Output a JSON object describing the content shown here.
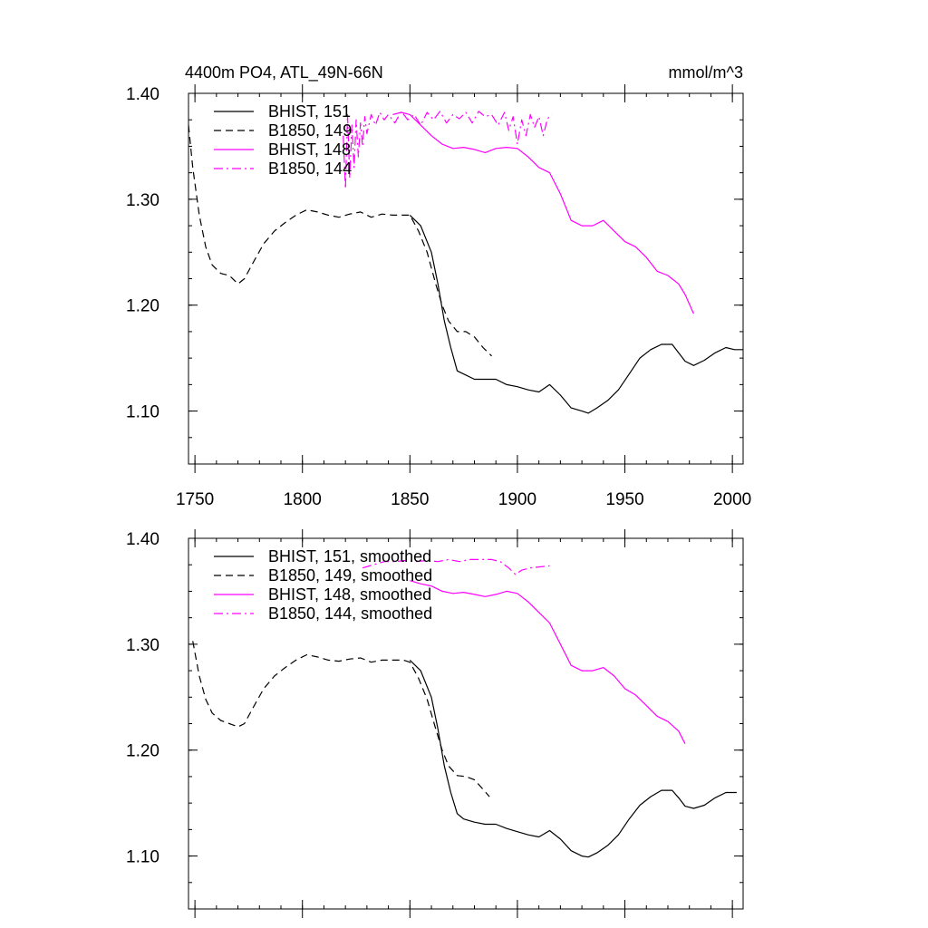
{
  "title_left": "4400m PO4, ATL_49N-66N",
  "title_right": "mmol/m^3",
  "colors": {
    "black": "#000000",
    "magenta": "#ff00ff"
  },
  "chart_data": [
    {
      "type": "line",
      "xlim": [
        1747,
        2005
      ],
      "ylim": [
        1.05,
        1.4
      ],
      "yticks": [
        1.1,
        1.2,
        1.3,
        1.4
      ],
      "ytick_labels": [
        "1.10",
        "1.20",
        "1.30",
        "1.40"
      ],
      "xticks": [
        1750,
        1800,
        1850,
        1900,
        1950,
        2000
      ],
      "xtick_labels": [
        "1750",
        "1800",
        "1850",
        "1900",
        "1950",
        "2000"
      ],
      "legend_position": "top-left",
      "series": [
        {
          "name": "BHIST, 151",
          "color": "#000000",
          "dash": "solid",
          "x": [
            1850,
            1855,
            1860,
            1863,
            1866,
            1869,
            1872,
            1875,
            1880,
            1885,
            1890,
            1895,
            1900,
            1905,
            1910,
            1915,
            1920,
            1925,
            1930,
            1933,
            1937,
            1942,
            1947,
            1952,
            1957,
            1962,
            1967,
            1972,
            1975,
            1978,
            1982,
            1987,
            1992,
            1997,
            2001,
            2005
          ],
          "y": [
            1.285,
            1.275,
            1.25,
            1.22,
            1.185,
            1.16,
            1.138,
            1.135,
            1.13,
            1.13,
            1.13,
            1.125,
            1.123,
            1.12,
            1.118,
            1.125,
            1.115,
            1.103,
            1.1,
            1.098,
            1.103,
            1.11,
            1.12,
            1.135,
            1.15,
            1.158,
            1.163,
            1.163,
            1.155,
            1.147,
            1.143,
            1.148,
            1.155,
            1.16,
            1.158,
            1.158
          ]
        },
        {
          "name": "B1850, 149",
          "color": "#000000",
          "dash": "dashed",
          "x": [
            1747,
            1749,
            1752,
            1755,
            1758,
            1762,
            1766,
            1770,
            1773,
            1777,
            1782,
            1787,
            1792,
            1797,
            1802,
            1807,
            1812,
            1817,
            1822,
            1827,
            1832,
            1837,
            1842,
            1847,
            1850,
            1854,
            1858,
            1862,
            1865,
            1868,
            1872,
            1876,
            1880,
            1884,
            1888
          ],
          "y": [
            1.37,
            1.33,
            1.285,
            1.255,
            1.238,
            1.23,
            1.228,
            1.22,
            1.225,
            1.24,
            1.258,
            1.27,
            1.278,
            1.285,
            1.29,
            1.288,
            1.285,
            1.283,
            1.286,
            1.288,
            1.283,
            1.286,
            1.285,
            1.285,
            1.285,
            1.27,
            1.25,
            1.22,
            1.2,
            1.185,
            1.175,
            1.175,
            1.17,
            1.16,
            1.152
          ]
        },
        {
          "name": "BHIST, 148",
          "color": "#ff00ff",
          "dash": "solid",
          "x": [
            1842,
            1846,
            1850,
            1855,
            1860,
            1865,
            1870,
            1875,
            1880,
            1885,
            1890,
            1895,
            1900,
            1905,
            1910,
            1915,
            1920,
            1925,
            1930,
            1935,
            1940,
            1945,
            1950,
            1955,
            1960,
            1965,
            1970,
            1975,
            1978,
            1982
          ],
          "y": [
            1.38,
            1.382,
            1.38,
            1.37,
            1.36,
            1.352,
            1.348,
            1.349,
            1.347,
            1.344,
            1.348,
            1.349,
            1.348,
            1.34,
            1.33,
            1.325,
            1.305,
            1.28,
            1.275,
            1.275,
            1.28,
            1.27,
            1.26,
            1.255,
            1.245,
            1.232,
            1.228,
            1.22,
            1.21,
            1.192
          ]
        },
        {
          "name": "B1850, 144",
          "color": "#ff00ff",
          "dash": "dashdot",
          "x": [
            1819,
            1820,
            1821,
            1822,
            1823,
            1824,
            1825,
            1826,
            1827,
            1828,
            1829,
            1830,
            1832,
            1834,
            1836,
            1838,
            1840,
            1843,
            1846,
            1849,
            1852,
            1855,
            1858,
            1861,
            1864,
            1867,
            1870,
            1873,
            1876,
            1879,
            1882,
            1885,
            1888,
            1891,
            1894,
            1896,
            1898,
            1900,
            1902,
            1904,
            1906,
            1908,
            1910,
            1912,
            1914,
            1916
          ],
          "y": [
            1.36,
            1.31,
            1.38,
            1.32,
            1.37,
            1.33,
            1.375,
            1.34,
            1.372,
            1.35,
            1.378,
            1.362,
            1.38,
            1.37,
            1.382,
            1.375,
            1.38,
            1.372,
            1.383,
            1.375,
            1.38,
            1.37,
            1.382,
            1.375,
            1.383,
            1.372,
            1.38,
            1.376,
            1.382,
            1.372,
            1.383,
            1.378,
            1.38,
            1.37,
            1.382,
            1.365,
            1.378,
            1.352,
            1.375,
            1.36,
            1.38,
            1.368,
            1.378,
            1.36,
            1.376,
            1.38
          ]
        }
      ]
    },
    {
      "type": "line",
      "xlim": [
        1747,
        2005
      ],
      "ylim": [
        1.05,
        1.4
      ],
      "yticks": [
        1.1,
        1.2,
        1.3,
        1.4
      ],
      "ytick_labels": [
        "1.10",
        "1.20",
        "1.30",
        "1.40"
      ],
      "xticks": [
        1750,
        1800,
        1850,
        1900,
        1950,
        2000
      ],
      "xtick_labels": [],
      "legend_position": "top-left",
      "series": [
        {
          "name": "BHIST, 151, smoothed",
          "color": "#000000",
          "dash": "solid",
          "x": [
            1850,
            1855,
            1860,
            1863,
            1866,
            1869,
            1872,
            1875,
            1880,
            1885,
            1890,
            1895,
            1900,
            1905,
            1910,
            1915,
            1920,
            1925,
            1930,
            1933,
            1937,
            1942,
            1947,
            1952,
            1957,
            1962,
            1967,
            1972,
            1975,
            1978,
            1982,
            1987,
            1992,
            1997,
            2002
          ],
          "y": [
            1.285,
            1.275,
            1.25,
            1.22,
            1.185,
            1.16,
            1.14,
            1.135,
            1.132,
            1.13,
            1.13,
            1.126,
            1.123,
            1.12,
            1.118,
            1.124,
            1.116,
            1.105,
            1.1,
            1.099,
            1.103,
            1.11,
            1.12,
            1.135,
            1.148,
            1.156,
            1.162,
            1.162,
            1.155,
            1.147,
            1.145,
            1.148,
            1.155,
            1.16,
            1.16
          ]
        },
        {
          "name": "B1850, 149, smoothed",
          "color": "#000000",
          "dash": "dashed",
          "x": [
            1749,
            1752,
            1755,
            1758,
            1762,
            1766,
            1770,
            1773,
            1777,
            1782,
            1787,
            1792,
            1797,
            1802,
            1807,
            1812,
            1817,
            1822,
            1827,
            1832,
            1837,
            1842,
            1847,
            1850,
            1854,
            1858,
            1862,
            1865,
            1868,
            1872,
            1876,
            1880,
            1884,
            1887
          ],
          "y": [
            1.303,
            1.27,
            1.248,
            1.235,
            1.228,
            1.225,
            1.222,
            1.225,
            1.24,
            1.258,
            1.27,
            1.278,
            1.285,
            1.29,
            1.288,
            1.285,
            1.284,
            1.286,
            1.287,
            1.283,
            1.285,
            1.285,
            1.285,
            1.283,
            1.268,
            1.248,
            1.22,
            1.2,
            1.185,
            1.176,
            1.175,
            1.172,
            1.163,
            1.156
          ]
        },
        {
          "name": "BHIST, 148, smoothed",
          "color": "#ff00ff",
          "dash": "solid",
          "x": [
            1850,
            1855,
            1860,
            1865,
            1870,
            1875,
            1880,
            1885,
            1890,
            1895,
            1900,
            1905,
            1910,
            1915,
            1920,
            1925,
            1930,
            1935,
            1940,
            1945,
            1950,
            1955,
            1960,
            1965,
            1970,
            1975,
            1978
          ],
          "y": [
            1.36,
            1.357,
            1.355,
            1.35,
            1.348,
            1.349,
            1.347,
            1.345,
            1.347,
            1.35,
            1.348,
            1.34,
            1.33,
            1.32,
            1.3,
            1.28,
            1.275,
            1.275,
            1.278,
            1.27,
            1.258,
            1.252,
            1.242,
            1.232,
            1.227,
            1.218,
            1.206
          ]
        },
        {
          "name": "B1850, 144, smoothed",
          "color": "#ff00ff",
          "dash": "dashdot",
          "x": [
            1828,
            1833,
            1838,
            1843,
            1848,
            1853,
            1858,
            1863,
            1868,
            1873,
            1878,
            1883,
            1888,
            1892,
            1896,
            1899,
            1902,
            1906,
            1910,
            1915
          ],
          "y": [
            1.372,
            1.375,
            1.378,
            1.378,
            1.379,
            1.378,
            1.379,
            1.378,
            1.38,
            1.378,
            1.38,
            1.38,
            1.38,
            1.378,
            1.372,
            1.366,
            1.37,
            1.372,
            1.373,
            1.374
          ]
        }
      ]
    }
  ]
}
